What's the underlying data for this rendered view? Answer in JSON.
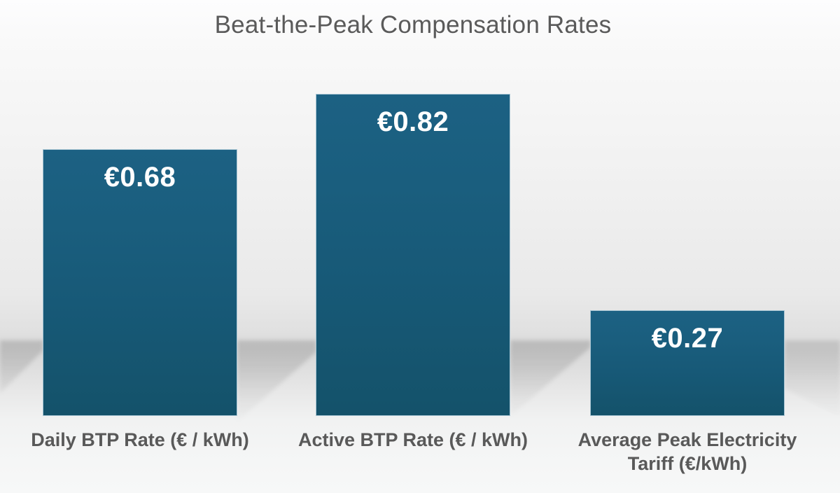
{
  "chart_data": {
    "type": "bar",
    "title": "Beat-the-Peak Compensation Rates",
    "categories": [
      "Daily BTP Rate (€ / kWh)",
      "Active BTP Rate (€ / kWh)",
      "Average Peak Electricity Tariff (€/kWh)"
    ],
    "label_lines": [
      [
        "Daily BTP Rate (€ / kWh)",
        ""
      ],
      [
        "Active BTP Rate (€ / kWh)",
        ""
      ],
      [
        "Average Peak Electricity",
        "Tariff (€/kWh)"
      ]
    ],
    "values": [
      0.68,
      0.82,
      0.27
    ],
    "data_labels": [
      "€0.68",
      "€0.82",
      "€0.27"
    ],
    "unit": "€/kWh",
    "ylim": [
      0,
      0.82
    ],
    "axis_visible": false,
    "grid": false,
    "legend": "none",
    "colors": {
      "bar_fill": "#175C7B",
      "bar_fill_top": "#1C6183",
      "bar_fill_bottom": "#14526A",
      "bar_border": "#A9C6D4",
      "value_label": "#FFFFFF",
      "text": "#595959",
      "background_top": "#FDFDFE",
      "background_band": "#D9D9D9",
      "background_bottom": "#F7F8F8"
    }
  }
}
